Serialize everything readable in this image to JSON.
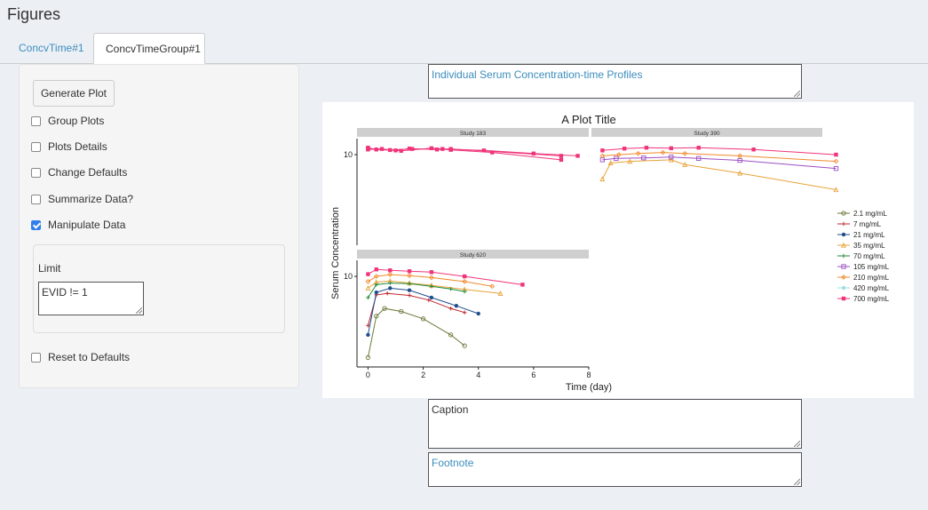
{
  "page": {
    "title": "Figures"
  },
  "tabs": [
    {
      "label": "ConcvTime#1",
      "active": false
    },
    {
      "label": "ConcvTimeGroup#1",
      "active": true
    }
  ],
  "panel": {
    "generate_button": "Generate Plot",
    "checkboxes": [
      {
        "label": "Group Plots",
        "checked": false
      },
      {
        "label": "Plots Details",
        "checked": false
      },
      {
        "label": "Change Defaults",
        "checked": false
      },
      {
        "label": "Summarize Data?",
        "checked": false
      },
      {
        "label": "Manipulate Data",
        "checked": true
      }
    ],
    "limit": {
      "label": "Limit",
      "value": "EVID != 1"
    },
    "reset": {
      "label": "Reset to Defaults",
      "checked": false
    }
  },
  "figure": {
    "title_field": "Individual Serum Concentration-time Profiles",
    "caption_field": "Caption",
    "footnote_field": "Footnote"
  },
  "chart_data": {
    "type": "line",
    "title": "A Plot Title",
    "xlabel": "Time (day)",
    "ylabel": "Serum Concentration",
    "x_ticks": [
      0,
      2,
      4,
      6,
      8
    ],
    "y_tick_label": "10",
    "y_scale": "log",
    "xlim": [
      -0.4,
      8
    ],
    "grid": false,
    "legend_position": "right",
    "panels": [
      "Study 183",
      "Study 390",
      "Study 620"
    ],
    "legend": [
      {
        "name": "2.1 mg/mL",
        "color": "#6b7a3a",
        "marker": "circle-open"
      },
      {
        "name": "7 mg/mL",
        "color": "#c0262d",
        "marker": "plus"
      },
      {
        "name": "21 mg/mL",
        "color": "#1f4e8c",
        "marker": "dot"
      },
      {
        "name": "35 mg/mL",
        "color": "#e8a33a",
        "marker": "triangle-open"
      },
      {
        "name": "70 mg/mL",
        "color": "#1f8a3a",
        "marker": "star"
      },
      {
        "name": "105 mg/mL",
        "color": "#9b4fc4",
        "marker": "square-open"
      },
      {
        "name": "210 mg/mL",
        "color": "#f28a2e",
        "marker": "diamond-open"
      },
      {
        "name": "420 mg/mL",
        "color": "#9ee0e0",
        "marker": "circle"
      },
      {
        "name": "700 mg/mL",
        "color": "#f0347a",
        "marker": "square"
      }
    ],
    "series": [
      {
        "panel": "Study 183",
        "name": "700 mg/mL",
        "profiles": [
          {
            "x": [
              0,
              0.3,
              1,
              1.5,
              2.5,
              3,
              7
            ],
            "y": [
              13.5,
              12.5,
              12,
              13,
              12.5,
              12.8,
              9.5
            ]
          },
          {
            "x": [
              0,
              0.5,
              1.2,
              2.3,
              3,
              4.5,
              7
            ],
            "y": [
              12.5,
              12.8,
              11.8,
              13.2,
              12.3,
              11,
              8
            ]
          },
          {
            "x": [
              0,
              0.8,
              1.6,
              2.7,
              4.2,
              6,
              7.6
            ],
            "y": [
              13,
              12.2,
              12.8,
              12.8,
              12,
              10.5,
              9.5
            ]
          }
        ]
      },
      {
        "panel": "Study 390",
        "name": "35 mg/mL",
        "profiles": [
          {
            "x": [
              0,
              0.3,
              1,
              2.5,
              3,
              5,
              8.5
            ],
            "y": [
              3.5,
              7,
              7.5,
              8,
              6.5,
              4.5,
              2.2
            ]
          }
        ]
      },
      {
        "panel": "Study 390",
        "name": "105 mg/mL",
        "profiles": [
          {
            "x": [
              0,
              0.5,
              1.5,
              2.5,
              3.5,
              5,
              8.5
            ],
            "y": [
              8,
              8.5,
              8.7,
              9,
              8.5,
              7.8,
              5.5
            ]
          }
        ]
      },
      {
        "panel": "Study 390",
        "name": "210 mg/mL",
        "profiles": [
          {
            "x": [
              0,
              0.6,
              1.3,
              2.2,
              3,
              5,
              8.5
            ],
            "y": [
              9.5,
              10,
              10.5,
              11,
              10.5,
              9.5,
              7.5
            ]
          }
        ]
      },
      {
        "panel": "Study 390",
        "name": "700 mg/mL",
        "profiles": [
          {
            "x": [
              0,
              0.8,
              1.6,
              2.5,
              3.5,
              5.5,
              8.5
            ],
            "y": [
              12,
              13,
              13.5,
              13.2,
              13.5,
              12.5,
              10
            ]
          }
        ]
      },
      {
        "panel": "Study 620",
        "name": "2.1 mg/mL",
        "profiles": [
          {
            "x": [
              0,
              0.3,
              0.6,
              1.2,
              2,
              3,
              3.5
            ],
            "y": [
              0.3,
              1.8,
              2.5,
              2.2,
              1.6,
              0.8,
              0.5
            ]
          }
        ]
      },
      {
        "panel": "Study 620",
        "name": "7 mg/mL",
        "profiles": [
          {
            "x": [
              0,
              0.3,
              0.7,
              1.5,
              2.2,
              3,
              3.5
            ],
            "y": [
              1.2,
              4.5,
              4.8,
              4.4,
              3.6,
              2.5,
              2.1
            ]
          }
        ]
      },
      {
        "panel": "Study 620",
        "name": "21 mg/mL",
        "profiles": [
          {
            "x": [
              0,
              0.3,
              0.8,
              1.5,
              2.3,
              3.2,
              4
            ],
            "y": [
              0.8,
              5,
              6,
              5.5,
              4,
              2.8,
              2
            ]
          }
        ]
      },
      {
        "panel": "Study 620",
        "name": "35 mg/mL",
        "profiles": [
          {
            "x": [
              0,
              0.3,
              0.8,
              1.5,
              2.3,
              3.5,
              4.8
            ],
            "y": [
              6,
              7.8,
              8.2,
              7.5,
              6.8,
              5.7,
              4.8
            ]
          }
        ]
      },
      {
        "panel": "Study 620",
        "name": "70 mg/mL",
        "profiles": [
          {
            "x": [
              0,
              0.3,
              0.8,
              1.5,
              2.3,
              3,
              3.5
            ],
            "y": [
              4,
              7,
              7.5,
              7.3,
              6.5,
              5.8,
              5.2
            ]
          }
        ]
      },
      {
        "panel": "Study 620",
        "name": "210 mg/mL",
        "profiles": [
          {
            "x": [
              0,
              0.3,
              0.8,
              1.5,
              2.3,
              3.5,
              4.5
            ],
            "y": [
              8,
              10,
              10.8,
              10.3,
              9.5,
              8,
              6.5
            ]
          }
        ]
      },
      {
        "panel": "Study 620",
        "name": "700 mg/mL",
        "profiles": [
          {
            "x": [
              0,
              0.3,
              0.8,
              1.5,
              2.3,
              3.5,
              5.6
            ],
            "y": [
              11,
              13.5,
              13,
              12.5,
              12,
              10,
              7
            ]
          }
        ]
      }
    ]
  }
}
